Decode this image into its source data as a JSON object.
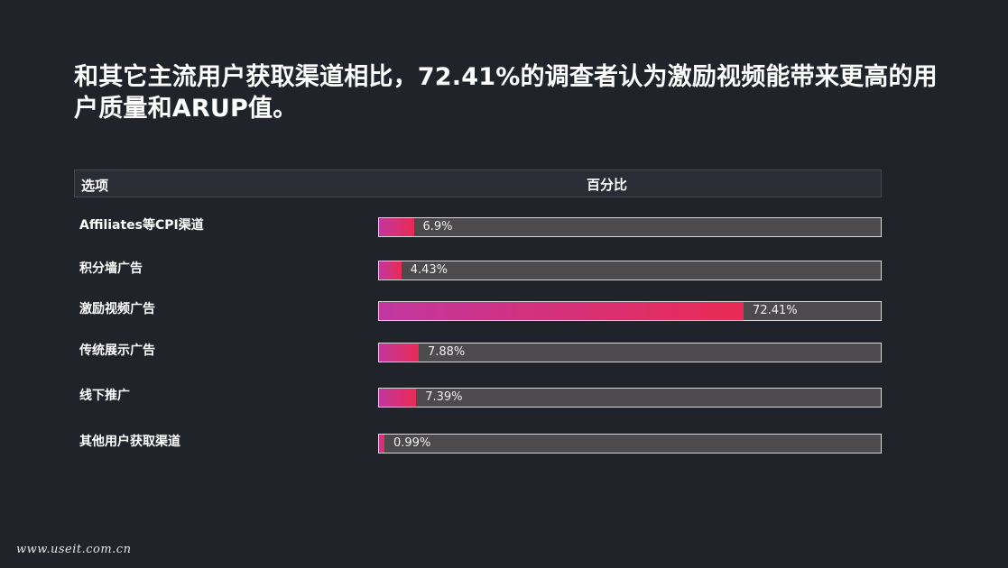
{
  "title": "和其它主流用户获取渠道相比，72.41%的调查者认为激励视频能带来更高的用户质量和ARUP值。",
  "table": {
    "col_option": "选项",
    "col_percent": "百分比"
  },
  "chart_data": {
    "type": "bar",
    "orientation": "horizontal",
    "xlim": [
      0,
      100
    ],
    "categories": [
      "Affiliates等CPI渠道",
      "积分墙广告",
      "激励视频广告",
      "传统展示广告",
      "线下推广",
      "其他用户获取渠道"
    ],
    "values": [
      6.9,
      4.43,
      72.41,
      7.88,
      7.39,
      0.99
    ],
    "value_labels": [
      "6.9%",
      "4.43%",
      "72.41%",
      "7.88%",
      "7.39%",
      "0.99%"
    ],
    "bar_colors": [
      "#c1379f",
      "#ea2a53"
    ],
    "track_color": "#4c4a4c"
  },
  "watermark": "www.useit.com.cn"
}
